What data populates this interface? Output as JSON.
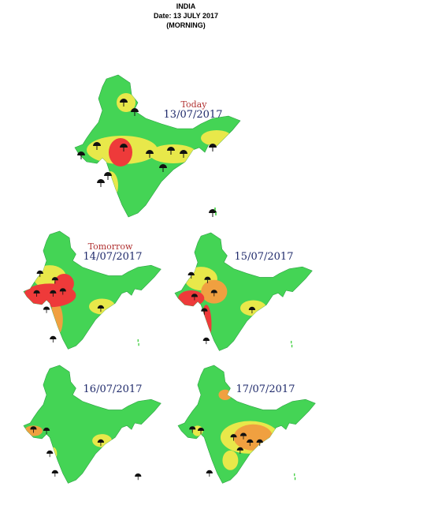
{
  "header": {
    "title": "INDIA",
    "date": "Date: 13 JULY 2017",
    "session": "(MORNING)"
  },
  "maps": [
    {
      "label": "Today",
      "date": "13/07/2017"
    },
    {
      "label": "Tomorrow",
      "date": "14/07/2017"
    },
    {
      "date": "15/07/2017"
    },
    {
      "date": "16/07/2017"
    },
    {
      "date": "17/07/2017"
    }
  ]
}
